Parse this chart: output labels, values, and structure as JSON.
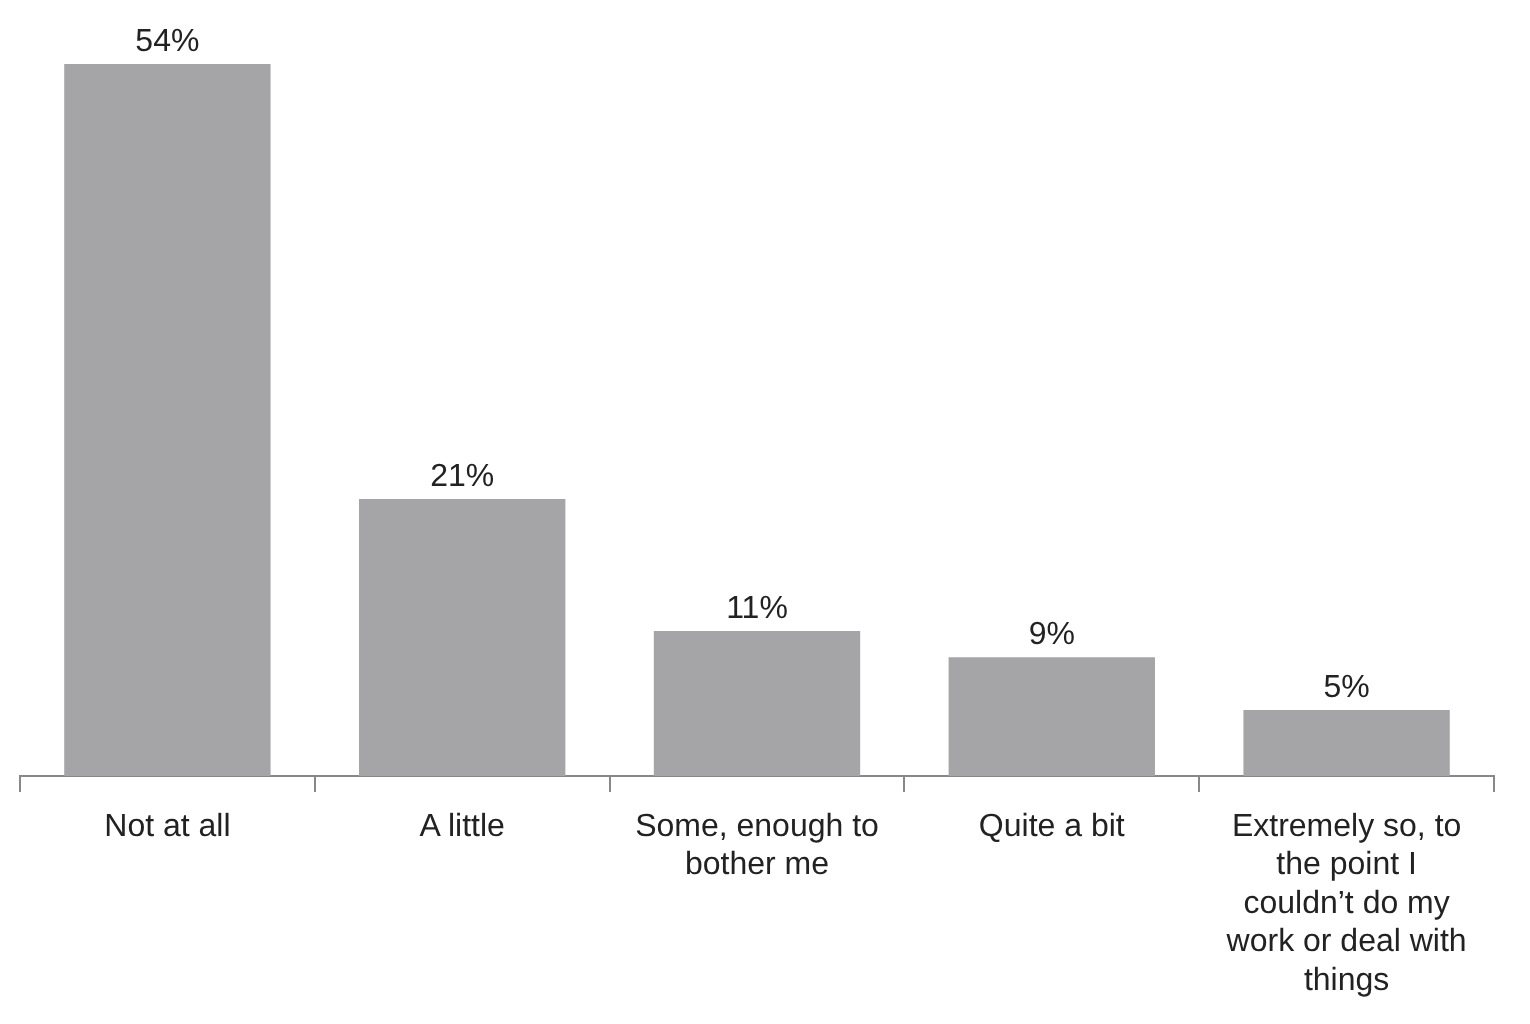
{
  "chart_data": {
    "type": "bar",
    "categories": [
      "Not at all",
      "A little",
      "Some, enough to bother me",
      "Quite a bit",
      "Extremely so, to the point I couldn’t do my work or deal with things"
    ],
    "values": [
      54,
      21,
      11,
      9,
      5
    ],
    "color": "#a5a5a7",
    "value_labels": [
      "54%",
      "21%",
      "11%",
      "9%",
      "5%"
    ],
    "grid": false,
    "legend": false
  }
}
